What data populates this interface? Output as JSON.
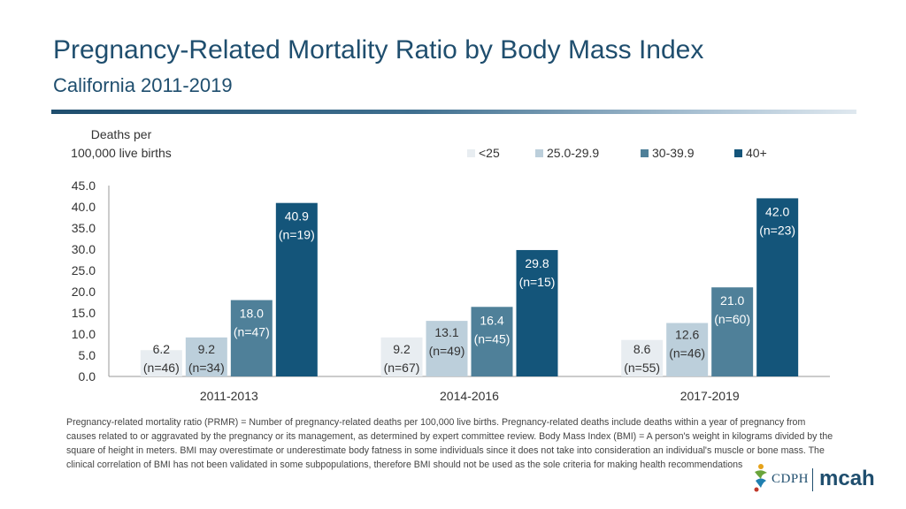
{
  "header": {
    "title": "Pregnancy-Related Mortality Ratio by Body Mass Index",
    "subtitle": "California 2011-2019"
  },
  "chart_data": {
    "type": "bar",
    "title": "Pregnancy-Related Mortality Ratio by Body Mass Index",
    "ylabel_line1": "Deaths per",
    "ylabel_line2": "100,000 live births",
    "xlabel": "",
    "ylim": [
      0,
      45
    ],
    "yticks": [
      "0.0",
      "5.0",
      "10.0",
      "15.0",
      "20.0",
      "25.0",
      "30.0",
      "35.0",
      "40.0",
      "45.0"
    ],
    "legend_position": "top-right",
    "categories": [
      "2011-2013",
      "2014-2016",
      "2017-2019"
    ],
    "series": [
      {
        "name": "<25",
        "color": "#e8edf1",
        "values": [
          6.2,
          9.2,
          8.6
        ],
        "counts": [
          "(n=46)",
          "(n=67)",
          "(n=55)"
        ],
        "labels": [
          "6.2",
          "9.2",
          "8.6"
        ]
      },
      {
        "name": "25.0-29.9",
        "color": "#bccfdb",
        "values": [
          9.2,
          13.1,
          12.6
        ],
        "counts": [
          "(n=34)",
          "(n=49)",
          "(n=46)"
        ],
        "labels": [
          "9.2",
          "13.1",
          "12.6"
        ]
      },
      {
        "name": "30-39.9",
        "color": "#4f8099",
        "values": [
          18.0,
          16.4,
          21.0
        ],
        "counts": [
          "(n=47)",
          "(n=45)",
          "(n=60)"
        ],
        "labels": [
          "18.0",
          "16.4",
          "21.0"
        ]
      },
      {
        "name": "40+",
        "color": "#14557a",
        "values": [
          40.9,
          29.8,
          42.0
        ],
        "counts": [
          "(n=19)",
          "(n=15)",
          "(n=23)"
        ],
        "labels": [
          "40.9",
          "29.8",
          "42.0"
        ]
      }
    ]
  },
  "footnote": "Pregnancy-related mortality ratio (PRMR) = Number of pregnancy-related deaths per 100,000 live births. Pregnancy-related deaths include deaths within a year of pregnancy from causes related to or aggravated by the pregnancy or its management, as determined by expert committee review. Body Mass Index (BMI) = A person's weight in kilograms divided by the square of height in meters. BMI may overestimate or underestimate body fatness in some individuals since it does not take into consideration an individual's muscle or bone mass. The clinical correlation of BMI has not been validated in some subpopulations, therefore BMI should not be used as the sole criteria for making health recommendations",
  "logo": {
    "cdph": "CDPH",
    "mcah": "mcah",
    "mark_icon": "cdph-figure-icon"
  }
}
